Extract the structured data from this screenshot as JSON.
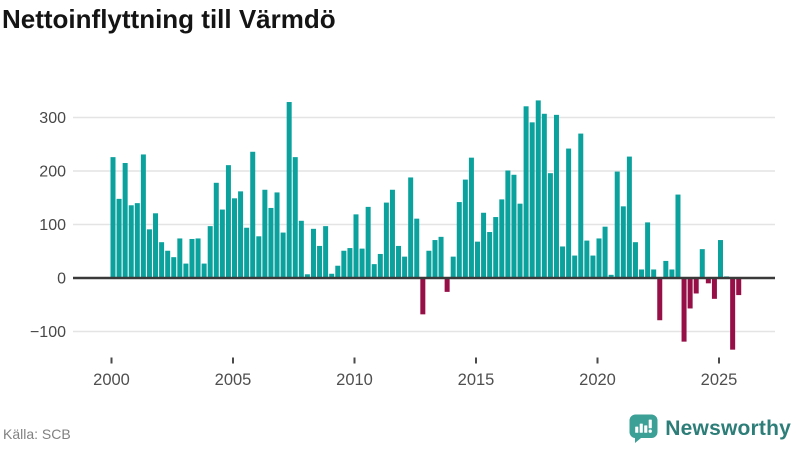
{
  "title": "Nettoinflyttning till Värmdö",
  "footer": {
    "source": "Källa: SCB",
    "brand": "Newsworthy"
  },
  "colors": {
    "positive_bar": "#0ba29e",
    "negative_bar": "#960f46",
    "gridline": "#e4e4e4",
    "zero_axis": "#3a3a3a",
    "y_label": "#484848",
    "x_label": "#4f4f4f",
    "tick_mark": "#4a4a4a",
    "brand_text": "#2d7d78",
    "brand_icon": "#3ca096"
  },
  "chart_data": {
    "type": "bar",
    "title": "Nettoinflyttning till Värmdö",
    "frequency": "quarterly",
    "start_period": "2000 Q1",
    "end_period": "2025 Q4",
    "grid": true,
    "legend": false,
    "ylim": [
      -150,
      360
    ],
    "y_ticks": [
      {
        "value": 300,
        "label": "300"
      },
      {
        "value": 200,
        "label": "200"
      },
      {
        "value": 100,
        "label": "100"
      },
      {
        "value": 0,
        "label": "0"
      },
      {
        "value": -100,
        "label": "−100"
      }
    ],
    "x_ticks": [
      {
        "label": "2000",
        "bar_index": 0
      },
      {
        "label": "2005",
        "bar_index": 20
      },
      {
        "label": "2010",
        "bar_index": 40
      },
      {
        "label": "2015",
        "bar_index": 60
      },
      {
        "label": "2020",
        "bar_index": 80
      },
      {
        "label": "2025",
        "bar_index": 100
      }
    ],
    "values": [
      225,
      147,
      214,
      135,
      139,
      230,
      90,
      120,
      66,
      50,
      38,
      73,
      26,
      72,
      73,
      26,
      96,
      177,
      127,
      210,
      148,
      161,
      93,
      235,
      77,
      164,
      130,
      159,
      84,
      328,
      225,
      106,
      6,
      91,
      59,
      96,
      7,
      22,
      50,
      55,
      118,
      54,
      132,
      25,
      44,
      140,
      164,
      59,
      39,
      187,
      110,
      -67,
      50,
      70,
      76,
      -25,
      39,
      141,
      183,
      224,
      67,
      121,
      85,
      113,
      146,
      200,
      192,
      138,
      320,
      290,
      331,
      306,
      195,
      304,
      58,
      241,
      41,
      269,
      69,
      41,
      73,
      95,
      5,
      198,
      133,
      226,
      66,
      15,
      103,
      15,
      -78,
      31,
      15,
      155,
      -118,
      -56,
      -28,
      53,
      -9,
      -38,
      70,
      2,
      -133,
      -31
    ]
  }
}
